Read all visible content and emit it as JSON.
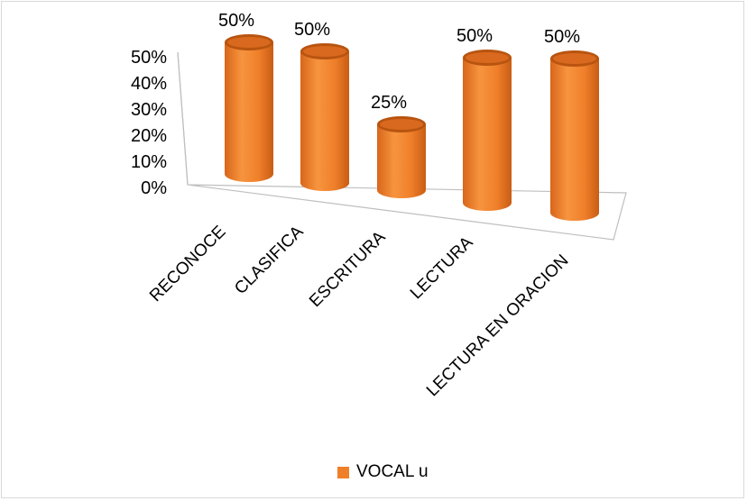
{
  "chart_data": {
    "type": "bar",
    "style": "3d-cylinder",
    "categories": [
      "RECONOCE",
      "CLASIFICA",
      "ESCRITURA",
      "LECTURA",
      "LECTURA EN ORACION"
    ],
    "series": [
      {
        "name": "VOCAL u",
        "values": [
          50,
          50,
          25,
          50,
          50
        ]
      }
    ],
    "data_labels": [
      "50%",
      "50%",
      "25%",
      "50%",
      "50%"
    ],
    "y_ticks": [
      "0%",
      "10%",
      "20%",
      "30%",
      "40%",
      "50%"
    ],
    "ylim": [
      0,
      50
    ],
    "grid": false,
    "legend": "bottom",
    "colors": {
      "bar": "#f07f2a",
      "bar_dark": "#b85410",
      "bar_light": "#f9a45c",
      "axis": "#bfbfbf"
    }
  }
}
